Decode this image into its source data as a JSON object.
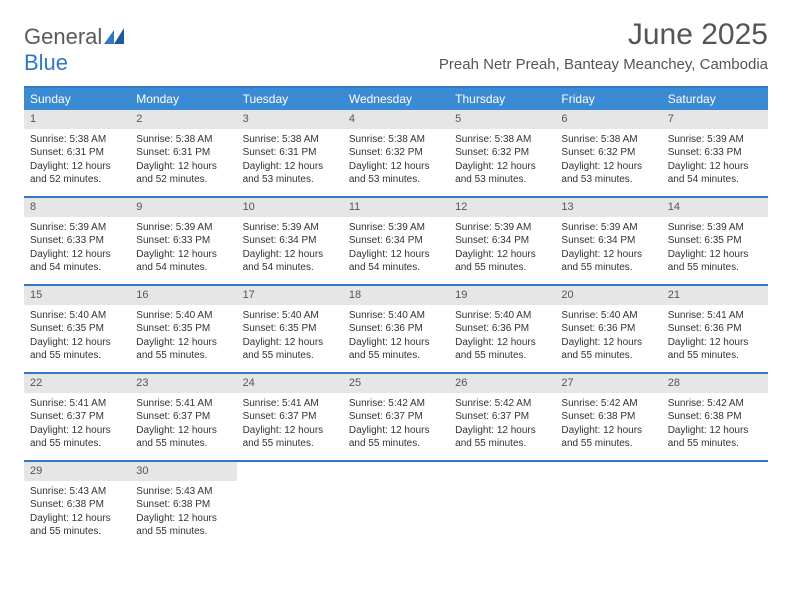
{
  "logo": {
    "word1": "General",
    "word2": "Blue"
  },
  "title": "June 2025",
  "location": "Preah Netr Preah, Banteay Meanchey, Cambodia",
  "colors": {
    "headerBlue": "#3b8bd4",
    "borderBlue": "#2f78c2",
    "dayBar": "#e6e6e6",
    "textGray": "#555555"
  },
  "dayNames": [
    "Sunday",
    "Monday",
    "Tuesday",
    "Wednesday",
    "Thursday",
    "Friday",
    "Saturday"
  ],
  "weeks": [
    [
      {
        "n": "1",
        "sr": "5:38 AM",
        "ss": "6:31 PM",
        "dl": "12 hours and 52 minutes."
      },
      {
        "n": "2",
        "sr": "5:38 AM",
        "ss": "6:31 PM",
        "dl": "12 hours and 52 minutes."
      },
      {
        "n": "3",
        "sr": "5:38 AM",
        "ss": "6:31 PM",
        "dl": "12 hours and 53 minutes."
      },
      {
        "n": "4",
        "sr": "5:38 AM",
        "ss": "6:32 PM",
        "dl": "12 hours and 53 minutes."
      },
      {
        "n": "5",
        "sr": "5:38 AM",
        "ss": "6:32 PM",
        "dl": "12 hours and 53 minutes."
      },
      {
        "n": "6",
        "sr": "5:38 AM",
        "ss": "6:32 PM",
        "dl": "12 hours and 53 minutes."
      },
      {
        "n": "7",
        "sr": "5:39 AM",
        "ss": "6:33 PM",
        "dl": "12 hours and 54 minutes."
      }
    ],
    [
      {
        "n": "8",
        "sr": "5:39 AM",
        "ss": "6:33 PM",
        "dl": "12 hours and 54 minutes."
      },
      {
        "n": "9",
        "sr": "5:39 AM",
        "ss": "6:33 PM",
        "dl": "12 hours and 54 minutes."
      },
      {
        "n": "10",
        "sr": "5:39 AM",
        "ss": "6:34 PM",
        "dl": "12 hours and 54 minutes."
      },
      {
        "n": "11",
        "sr": "5:39 AM",
        "ss": "6:34 PM",
        "dl": "12 hours and 54 minutes."
      },
      {
        "n": "12",
        "sr": "5:39 AM",
        "ss": "6:34 PM",
        "dl": "12 hours and 55 minutes."
      },
      {
        "n": "13",
        "sr": "5:39 AM",
        "ss": "6:34 PM",
        "dl": "12 hours and 55 minutes."
      },
      {
        "n": "14",
        "sr": "5:39 AM",
        "ss": "6:35 PM",
        "dl": "12 hours and 55 minutes."
      }
    ],
    [
      {
        "n": "15",
        "sr": "5:40 AM",
        "ss": "6:35 PM",
        "dl": "12 hours and 55 minutes."
      },
      {
        "n": "16",
        "sr": "5:40 AM",
        "ss": "6:35 PM",
        "dl": "12 hours and 55 minutes."
      },
      {
        "n": "17",
        "sr": "5:40 AM",
        "ss": "6:35 PM",
        "dl": "12 hours and 55 minutes."
      },
      {
        "n": "18",
        "sr": "5:40 AM",
        "ss": "6:36 PM",
        "dl": "12 hours and 55 minutes."
      },
      {
        "n": "19",
        "sr": "5:40 AM",
        "ss": "6:36 PM",
        "dl": "12 hours and 55 minutes."
      },
      {
        "n": "20",
        "sr": "5:40 AM",
        "ss": "6:36 PM",
        "dl": "12 hours and 55 minutes."
      },
      {
        "n": "21",
        "sr": "5:41 AM",
        "ss": "6:36 PM",
        "dl": "12 hours and 55 minutes."
      }
    ],
    [
      {
        "n": "22",
        "sr": "5:41 AM",
        "ss": "6:37 PM",
        "dl": "12 hours and 55 minutes."
      },
      {
        "n": "23",
        "sr": "5:41 AM",
        "ss": "6:37 PM",
        "dl": "12 hours and 55 minutes."
      },
      {
        "n": "24",
        "sr": "5:41 AM",
        "ss": "6:37 PM",
        "dl": "12 hours and 55 minutes."
      },
      {
        "n": "25",
        "sr": "5:42 AM",
        "ss": "6:37 PM",
        "dl": "12 hours and 55 minutes."
      },
      {
        "n": "26",
        "sr": "5:42 AM",
        "ss": "6:37 PM",
        "dl": "12 hours and 55 minutes."
      },
      {
        "n": "27",
        "sr": "5:42 AM",
        "ss": "6:38 PM",
        "dl": "12 hours and 55 minutes."
      },
      {
        "n": "28",
        "sr": "5:42 AM",
        "ss": "6:38 PM",
        "dl": "12 hours and 55 minutes."
      }
    ],
    [
      {
        "n": "29",
        "sr": "5:43 AM",
        "ss": "6:38 PM",
        "dl": "12 hours and 55 minutes."
      },
      {
        "n": "30",
        "sr": "5:43 AM",
        "ss": "6:38 PM",
        "dl": "12 hours and 55 minutes."
      },
      null,
      null,
      null,
      null,
      null
    ]
  ],
  "labels": {
    "sunrise": "Sunrise: ",
    "sunset": "Sunset: ",
    "daylight": "Daylight: "
  }
}
